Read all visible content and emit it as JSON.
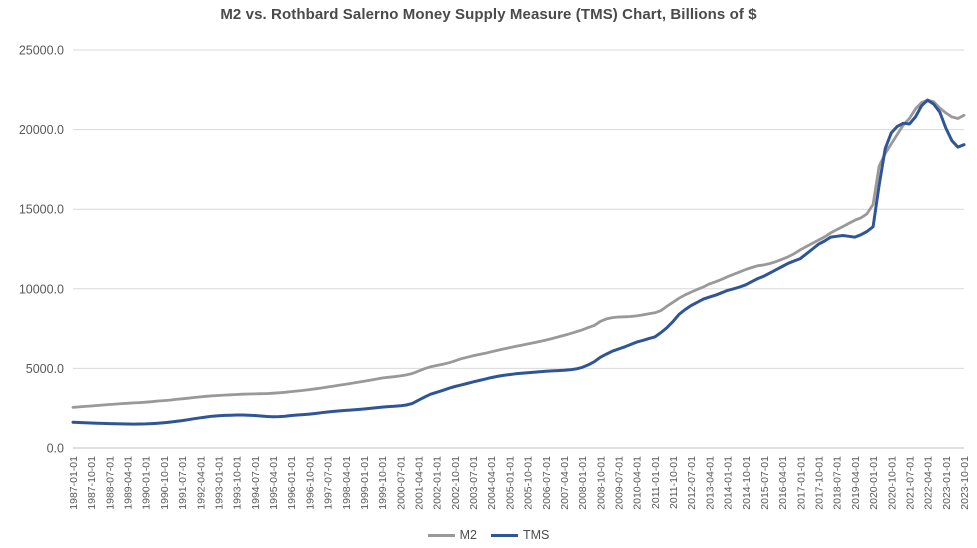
{
  "title": "M2 vs. Rothbard Salerno Money Supply Measure (TMS) Chart, Billions of $",
  "colors": {
    "m2_line": "#999999",
    "tms_line": "#2F5597",
    "grid": "#D9D9D9",
    "axis": "#BFBFBF",
    "tick_text": "#595959",
    "title_text": "#4a4a4a",
    "background": "#FFFFFF"
  },
  "legend": {
    "items": [
      {
        "label": "M2"
      },
      {
        "label": "TMS"
      }
    ]
  },
  "chart_data": {
    "type": "line",
    "title": "M2 vs. Rothbard Salerno Money Supply Measure (TMS) Chart, Billions of $",
    "xlabel": "",
    "ylabel": "",
    "ylim": [
      0,
      25000
    ],
    "y_ticks": [
      0,
      5000,
      10000,
      15000,
      20000,
      25000
    ],
    "y_tick_labels": [
      "0.0",
      "5000.0",
      "10000.0",
      "15000.0",
      "20000.0",
      "25000.0"
    ],
    "grid": "horizontal",
    "legend_position": "bottom",
    "x_tick_every": 3,
    "x": [
      "1987-01-01",
      "1987-04-01",
      "1987-07-01",
      "1987-10-01",
      "1988-01-01",
      "1988-04-01",
      "1988-07-01",
      "1988-10-01",
      "1989-01-01",
      "1989-04-01",
      "1989-07-01",
      "1989-10-01",
      "1990-01-01",
      "1990-04-01",
      "1990-07-01",
      "1990-10-01",
      "1991-01-01",
      "1991-04-01",
      "1991-07-01",
      "1991-10-01",
      "1992-01-01",
      "1992-04-01",
      "1992-07-01",
      "1992-10-01",
      "1993-01-01",
      "1993-04-01",
      "1993-07-01",
      "1993-10-01",
      "1994-01-01",
      "1994-04-01",
      "1994-07-01",
      "1994-10-01",
      "1995-01-01",
      "1995-04-01",
      "1995-07-01",
      "1995-10-01",
      "1996-01-01",
      "1996-04-01",
      "1996-07-01",
      "1996-10-01",
      "1997-01-01",
      "1997-04-01",
      "1997-07-01",
      "1997-10-01",
      "1998-01-01",
      "1998-04-01",
      "1998-07-01",
      "1998-10-01",
      "1999-01-01",
      "1999-04-01",
      "1999-07-01",
      "1999-10-01",
      "2000-01-01",
      "2000-04-01",
      "2000-07-01",
      "2000-10-01",
      "2001-01-01",
      "2001-04-01",
      "2001-07-01",
      "2001-10-01",
      "2002-01-01",
      "2002-04-01",
      "2002-07-01",
      "2002-10-01",
      "2003-01-01",
      "2003-04-01",
      "2003-07-01",
      "2003-10-01",
      "2004-01-01",
      "2004-04-01",
      "2004-07-01",
      "2004-10-01",
      "2005-01-01",
      "2005-04-01",
      "2005-07-01",
      "2005-10-01",
      "2006-01-01",
      "2006-04-01",
      "2006-07-01",
      "2006-10-01",
      "2007-01-01",
      "2007-04-01",
      "2007-07-01",
      "2007-10-01",
      "2008-01-01",
      "2008-04-01",
      "2008-07-01",
      "2008-10-01",
      "2009-01-01",
      "2009-04-01",
      "2009-07-01",
      "2009-10-01",
      "2010-01-01",
      "2010-04-01",
      "2010-07-01",
      "2010-10-01",
      "2011-01-01",
      "2011-04-01",
      "2011-07-01",
      "2011-10-01",
      "2012-01-01",
      "2012-04-01",
      "2012-07-01",
      "2012-10-01",
      "2013-01-01",
      "2013-04-01",
      "2013-07-01",
      "2013-10-01",
      "2014-01-01",
      "2014-04-01",
      "2014-07-01",
      "2014-10-01",
      "2015-01-01",
      "2015-04-01",
      "2015-07-01",
      "2015-10-01",
      "2016-01-01",
      "2016-04-01",
      "2016-07-01",
      "2016-10-01",
      "2017-01-01",
      "2017-04-01",
      "2017-07-01",
      "2017-10-01",
      "2018-01-01",
      "2018-04-01",
      "2018-07-01",
      "2018-10-01",
      "2019-01-01",
      "2019-04-01",
      "2019-07-01",
      "2019-10-01",
      "2020-01-01",
      "2020-04-01",
      "2020-07-01",
      "2020-10-01",
      "2021-01-01",
      "2021-04-01",
      "2021-07-01",
      "2021-10-01",
      "2022-01-01",
      "2022-04-01",
      "2022-07-01",
      "2022-10-01",
      "2023-01-01",
      "2023-04-01",
      "2023-07-01",
      "2023-10-01"
    ],
    "series": [
      {
        "name": "M2",
        "color": "#999999",
        "values": [
          2550,
          2580,
          2610,
          2640,
          2670,
          2700,
          2730,
          2760,
          2790,
          2810,
          2830,
          2850,
          2880,
          2910,
          2950,
          2980,
          3010,
          3050,
          3090,
          3130,
          3170,
          3210,
          3250,
          3280,
          3300,
          3320,
          3340,
          3360,
          3380,
          3390,
          3400,
          3410,
          3420,
          3440,
          3470,
          3500,
          3540,
          3580,
          3620,
          3670,
          3720,
          3770,
          3830,
          3890,
          3950,
          4010,
          4070,
          4130,
          4190,
          4260,
          4330,
          4400,
          4440,
          4480,
          4530,
          4590,
          4680,
          4830,
          4980,
          5100,
          5180,
          5260,
          5350,
          5470,
          5600,
          5700,
          5790,
          5870,
          5950,
          6040,
          6130,
          6220,
          6300,
          6380,
          6450,
          6530,
          6610,
          6690,
          6780,
          6870,
          6970,
          7070,
          7180,
          7300,
          7420,
          7560,
          7700,
          7950,
          8110,
          8190,
          8230,
          8240,
          8260,
          8300,
          8360,
          8430,
          8490,
          8630,
          8910,
          9160,
          9410,
          9620,
          9790,
          9960,
          10110,
          10310,
          10440,
          10590,
          10760,
          10910,
          11060,
          11210,
          11340,
          11450,
          11500,
          11590,
          11710,
          11860,
          12010,
          12210,
          12450,
          12660,
          12860,
          13060,
          13260,
          13510,
          13710,
          13910,
          14110,
          14310,
          14460,
          14710,
          15300,
          17700,
          18500,
          19100,
          19700,
          20300,
          20700,
          21300,
          21700,
          21850,
          21750,
          21350,
          21050,
          20800,
          20700,
          20900
        ]
      },
      {
        "name": "TMS",
        "color": "#2F5597",
        "values": [
          1620,
          1600,
          1585,
          1570,
          1555,
          1545,
          1535,
          1525,
          1515,
          1505,
          1500,
          1505,
          1515,
          1535,
          1560,
          1590,
          1630,
          1670,
          1720,
          1780,
          1840,
          1900,
          1950,
          2000,
          2030,
          2050,
          2060,
          2070,
          2070,
          2060,
          2040,
          2010,
          1980,
          1965,
          1975,
          2000,
          2040,
          2070,
          2100,
          2130,
          2170,
          2220,
          2260,
          2300,
          2330,
          2360,
          2390,
          2420,
          2450,
          2490,
          2530,
          2570,
          2600,
          2620,
          2650,
          2700,
          2800,
          3000,
          3200,
          3380,
          3500,
          3620,
          3750,
          3860,
          3950,
          4050,
          4150,
          4240,
          4330,
          4420,
          4500,
          4560,
          4610,
          4660,
          4700,
          4730,
          4760,
          4790,
          4820,
          4840,
          4860,
          4880,
          4910,
          4970,
          5060,
          5220,
          5420,
          5700,
          5900,
          6080,
          6220,
          6350,
          6500,
          6650,
          6760,
          6870,
          6980,
          7250,
          7560,
          7950,
          8400,
          8700,
          8950,
          9150,
          9350,
          9480,
          9600,
          9750,
          9900,
          10000,
          10110,
          10250,
          10450,
          10650,
          10800,
          11000,
          11200,
          11400,
          11600,
          11750,
          11900,
          12200,
          12500,
          12800,
          13000,
          13250,
          13300,
          13350,
          13300,
          13250,
          13400,
          13600,
          13900,
          16500,
          18800,
          19800,
          20200,
          20400,
          20350,
          20800,
          21500,
          21850,
          21600,
          21100,
          20100,
          19300,
          18900,
          19050
        ]
      }
    ]
  }
}
